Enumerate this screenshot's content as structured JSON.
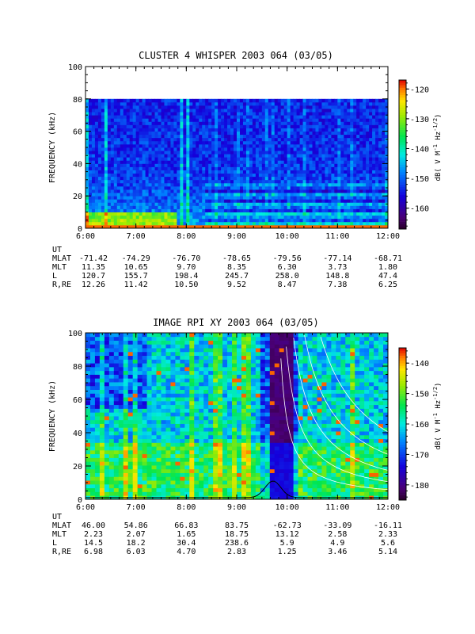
{
  "chart_data": [
    {
      "type": "heatmap",
      "title": "CLUSTER 4 WHISPER 2003 064 (03/05)",
      "ylabel": "FREQUENCY (kHz)",
      "colorbar_label": "dB( V M",
      "colorbar_sup1": "-1",
      "colorbar_mid": " Hz",
      "colorbar_sup2": "-1/2",
      "colorbar_end": ")",
      "ylim": [
        0,
        100
      ],
      "data_fmax": 80,
      "xlim_hours": [
        6,
        12
      ],
      "y_ticks": [
        "0",
        "20",
        "40",
        "60",
        "80",
        "100"
      ],
      "x_ticks": [
        "6:00",
        "7:00",
        "8:00",
        "9:00",
        "10:00",
        "11:00",
        "12:00"
      ],
      "colorbar_range": [
        -167,
        -117
      ],
      "colorbar_ticks": [
        "-160",
        "-150",
        "-140",
        "-130",
        "-120"
      ],
      "ephemeris": [
        {
          "label": "UT",
          "values": []
        },
        {
          "label": "MLAT",
          "values": [
            "-71.42",
            "-74.29",
            "-76.70",
            "-78.65",
            "-79.56",
            "-77.14",
            "-68.71"
          ]
        },
        {
          "label": "MLT",
          "values": [
            "11.35",
            "10.65",
            "9.70",
            "8.35",
            "6.30",
            "3.73",
            "1.80"
          ]
        },
        {
          "label": "L",
          "values": [
            "120.7",
            "155.7",
            "198.4",
            "245.7",
            "258.0",
            "148.8",
            "47.4"
          ]
        },
        {
          "label": "R,RE",
          "values": [
            "12.26",
            "11.42",
            "10.50",
            "9.52",
            "8.47",
            "7.38",
            "6.25"
          ]
        }
      ]
    },
    {
      "type": "heatmap",
      "title": "IMAGE RPI XY 2003 064 (03/05)",
      "ylabel": "FREQUENCY (kHz)",
      "colorbar_label": "dB( V M",
      "colorbar_sup1": "-1",
      "colorbar_mid": " Hz",
      "colorbar_sup2": "-1/2",
      "colorbar_end": ")",
      "ylim": [
        0,
        100
      ],
      "data_fmax": 100,
      "xlim_hours": [
        6,
        12
      ],
      "y_ticks": [
        "0",
        "20",
        "40",
        "60",
        "80",
        "100"
      ],
      "x_ticks": [
        "6:00",
        "7:00",
        "8:00",
        "9:00",
        "10:00",
        "11:00",
        "12:00"
      ],
      "colorbar_range": [
        -185,
        -135
      ],
      "colorbar_ticks": [
        "-180",
        "-170",
        "-160",
        "-150",
        "-140"
      ],
      "ephemeris": [
        {
          "label": "UT",
          "values": []
        },
        {
          "label": "MLAT",
          "values": [
            "46.00",
            "54.86",
            "66.83",
            "83.75",
            "-62.73",
            "-33.09",
            "-16.11"
          ]
        },
        {
          "label": "MLT",
          "values": [
            "2.23",
            "2.07",
            "1.65",
            "18.75",
            "13.12",
            "2.58",
            "2.33"
          ]
        },
        {
          "label": "L",
          "values": [
            "14.5",
            "18.2",
            "30.4",
            "238.6",
            "5.9",
            "4.9",
            "5.6"
          ]
        },
        {
          "label": "R,RE",
          "values": [
            "6.98",
            "6.03",
            "4.70",
            "2.83",
            "1.25",
            "3.46",
            "5.14"
          ]
        }
      ]
    }
  ]
}
